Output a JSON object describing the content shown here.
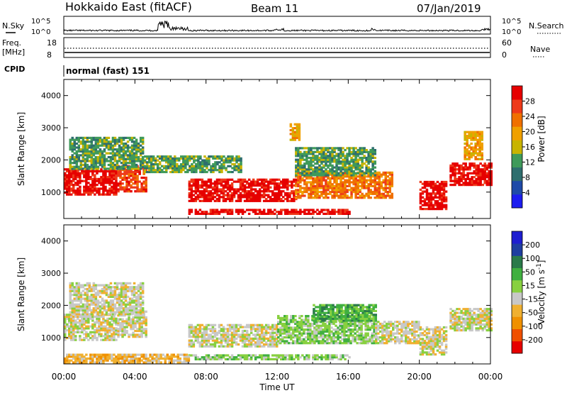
{
  "header": {
    "station": "Hokkaido East (fitACF)",
    "beam": "Beam 11",
    "date": "07/Jan/2019"
  },
  "noise_panel": {
    "left_label": "N.Sky",
    "right_label": "N.Search",
    "left_ticks": [
      "10^5",
      "10^0"
    ],
    "right_ticks": [
      "10^5",
      "10^0"
    ]
  },
  "freq_panel": {
    "left_label_1": "Freq.",
    "left_label_2": "[MHz]",
    "left_ticks": [
      "18",
      "8"
    ],
    "right_label": "Nave",
    "right_ticks": [
      "60",
      "0"
    ]
  },
  "cpid_panel": {
    "label": "CPID",
    "mode": "normal (fast) 151"
  },
  "time_axis": {
    "label": "Time UT",
    "ticks": [
      "00:00",
      "04:00",
      "08:00",
      "12:00",
      "16:00",
      "20:00",
      "00:00"
    ]
  },
  "colors": {
    "power": [
      "#1c1cf0",
      "#1e4aa8",
      "#2e6e6e",
      "#3f9a5a",
      "#c8b400",
      "#f0a000",
      "#f07000",
      "#ee3a1a",
      "#e60000"
    ],
    "velocity": [
      "#e60000",
      "#f05000",
      "#f09000",
      "#f0b030",
      "#c8c8c8",
      "#88d040",
      "#40b040",
      "#2a7a4a",
      "#1e3ea0",
      "#1e1ed0"
    ]
  },
  "chart_data": [
    {
      "type": "heatmap",
      "title": "",
      "xlabel": "Time UT",
      "ylabel": "Slant Range [km]",
      "xlim": [
        "00:00",
        "24:00"
      ],
      "ylim": [
        180,
        4500
      ],
      "x_ticks": [
        "00:00",
        "04:00",
        "08:00",
        "12:00",
        "16:00",
        "20:00",
        "00:00"
      ],
      "y_ticks": [
        "1000",
        "2000",
        "3000",
        "4000"
      ],
      "colorbar": {
        "label": "Power [dB]",
        "ticks": [
          "4",
          "8",
          "12",
          "16",
          "20",
          "24",
          "28"
        ]
      },
      "regions": [
        {
          "t0": 0.0,
          "t1": 3.0,
          "r0": 900,
          "r1": 1700,
          "level": 8
        },
        {
          "t0": 3.0,
          "t1": 4.6,
          "r0": 1000,
          "r1": 1800,
          "level": 7
        },
        {
          "t0": 7.0,
          "t1": 13.0,
          "r0": 700,
          "r1": 1400,
          "level": 8
        },
        {
          "t0": 13.0,
          "t1": 18.5,
          "r0": 800,
          "r1": 1600,
          "level": 6
        },
        {
          "t0": 20.0,
          "t1": 21.5,
          "r0": 450,
          "r1": 1300,
          "level": 8
        },
        {
          "t0": 21.7,
          "t1": 24.0,
          "r0": 1200,
          "r1": 1900,
          "level": 8
        },
        {
          "t0": 0.3,
          "t1": 4.5,
          "r0": 1700,
          "r1": 2700,
          "level": 3
        },
        {
          "t0": 4.5,
          "t1": 10.0,
          "r0": 1600,
          "r1": 2100,
          "level": 3
        },
        {
          "t0": 13.0,
          "t1": 17.5,
          "r0": 1500,
          "r1": 2400,
          "level": 3
        },
        {
          "t0": 7.0,
          "t1": 16.0,
          "r0": 300,
          "r1": 450,
          "level": 8
        },
        {
          "t0": 12.7,
          "t1": 13.2,
          "r0": 2600,
          "r1": 3100,
          "level": 5
        },
        {
          "t0": 22.5,
          "t1": 23.5,
          "r0": 2000,
          "r1": 2900,
          "level": 5
        }
      ]
    },
    {
      "type": "heatmap",
      "title": "",
      "xlabel": "Time UT",
      "ylabel": "Slant Range [km]",
      "xlim": [
        "00:00",
        "24:00"
      ],
      "ylim": [
        180,
        4500
      ],
      "x_ticks": [
        "00:00",
        "04:00",
        "08:00",
        "12:00",
        "16:00",
        "20:00",
        "00:00"
      ],
      "y_ticks": [
        "1000",
        "2000",
        "3000",
        "4000"
      ],
      "colorbar": {
        "label": "Velocity [m s^-1]",
        "ticks": [
          "-200",
          "-100",
          "-50",
          "-15",
          "15",
          "50",
          "100",
          "200"
        ]
      },
      "regions": [
        {
          "t0": 0.0,
          "t1": 3.0,
          "r0": 900,
          "r1": 1700,
          "level": 4
        },
        {
          "t0": 3.0,
          "t1": 4.6,
          "r0": 1000,
          "r1": 1800,
          "level": 4
        },
        {
          "t0": 7.0,
          "t1": 12.0,
          "r0": 700,
          "r1": 1400,
          "level": 4
        },
        {
          "t0": 12.0,
          "t1": 17.5,
          "r0": 800,
          "r1": 1700,
          "level": 5
        },
        {
          "t0": 17.5,
          "t1": 20.0,
          "r0": 800,
          "r1": 1500,
          "level": 4
        },
        {
          "t0": 20.0,
          "t1": 21.5,
          "r0": 450,
          "r1": 1300,
          "level": 4
        },
        {
          "t0": 21.7,
          "t1": 24.0,
          "r0": 1200,
          "r1": 1900,
          "level": 4
        },
        {
          "t0": 0.3,
          "t1": 4.5,
          "r0": 1700,
          "r1": 2700,
          "level": 4
        },
        {
          "t0": 14.0,
          "t1": 17.5,
          "r0": 1500,
          "r1": 2000,
          "level": 6
        },
        {
          "t0": 7.0,
          "t1": 16.0,
          "r0": 300,
          "r1": 450,
          "level": 5
        },
        {
          "t0": 0.0,
          "t1": 7.0,
          "r0": 200,
          "r1": 450,
          "level": 3
        }
      ]
    }
  ]
}
